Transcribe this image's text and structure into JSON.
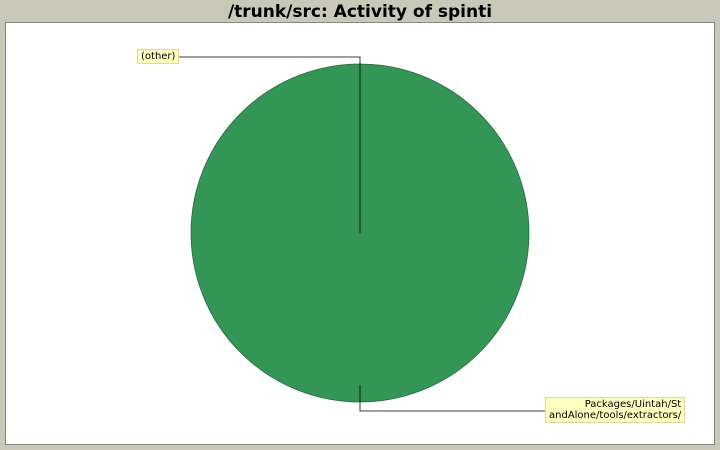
{
  "chart_data": {
    "type": "pie",
    "title": "/trunk/src: Activity of spinti",
    "slices": [
      {
        "label": "(other)",
        "value": 0.0
      },
      {
        "label_lines": [
          "Packages/Uintah/St",
          "andAlone/tools/extractors/"
        ],
        "value": 100.0
      }
    ],
    "colors": {
      "main_slice": "#339657",
      "background": "#c9c9b9",
      "label_bg": "#ffffc0"
    },
    "legend": "none",
    "grid": false
  }
}
